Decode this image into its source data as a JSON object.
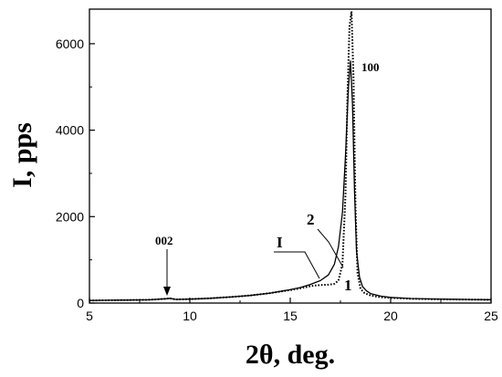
{
  "chart_data": {
    "type": "line",
    "xlabel": "2θ, deg.",
    "ylabel": "I, pps",
    "xlim": [
      5,
      25
    ],
    "ylim": [
      0,
      6800
    ],
    "x_ticks": [
      5,
      10,
      15,
      20,
      25
    ],
    "y_ticks": [
      0,
      2000,
      4000,
      6000
    ],
    "grid": false,
    "series": [
      {
        "name": "1",
        "style": "dotted",
        "points": [
          [
            5,
            60
          ],
          [
            6,
            65
          ],
          [
            7,
            70
          ],
          [
            8,
            75
          ],
          [
            8.8,
            100
          ],
          [
            9,
            110
          ],
          [
            9.3,
            85
          ],
          [
            10,
            90
          ],
          [
            11,
            110
          ],
          [
            12,
            140
          ],
          [
            13,
            175
          ],
          [
            14,
            230
          ],
          [
            15,
            300
          ],
          [
            15.5,
            340
          ],
          [
            16,
            390
          ],
          [
            16.3,
            410
          ],
          [
            16.6,
            420
          ],
          [
            16.9,
            425
          ],
          [
            17.2,
            445
          ],
          [
            17.4,
            520
          ],
          [
            17.6,
            900
          ],
          [
            17.75,
            2500
          ],
          [
            17.85,
            4800
          ],
          [
            17.95,
            6400
          ],
          [
            18.05,
            6750
          ],
          [
            18.15,
            5200
          ],
          [
            18.25,
            2200
          ],
          [
            18.35,
            700
          ],
          [
            18.5,
            330
          ],
          [
            18.7,
            230
          ],
          [
            19,
            175
          ],
          [
            19.5,
            135
          ],
          [
            20,
            120
          ],
          [
            21,
            100
          ],
          [
            22,
            90
          ],
          [
            23,
            85
          ],
          [
            24,
            80
          ],
          [
            25,
            75
          ]
        ]
      },
      {
        "name": "2",
        "style": "solid",
        "points": [
          [
            5,
            60
          ],
          [
            6,
            65
          ],
          [
            7,
            70
          ],
          [
            8,
            75
          ],
          [
            8.8,
            100
          ],
          [
            9,
            110
          ],
          [
            9.3,
            85
          ],
          [
            10,
            90
          ],
          [
            11,
            110
          ],
          [
            12,
            140
          ],
          [
            13,
            175
          ],
          [
            14,
            230
          ],
          [
            15,
            310
          ],
          [
            15.5,
            360
          ],
          [
            16,
            430
          ],
          [
            16.5,
            520
          ],
          [
            16.9,
            650
          ],
          [
            17.2,
            900
          ],
          [
            17.4,
            1300
          ],
          [
            17.6,
            2100
          ],
          [
            17.75,
            3400
          ],
          [
            17.9,
            5000
          ],
          [
            18.0,
            5600
          ],
          [
            18.1,
            4600
          ],
          [
            18.2,
            2600
          ],
          [
            18.3,
            1200
          ],
          [
            18.45,
            600
          ],
          [
            18.6,
            380
          ],
          [
            18.8,
            280
          ],
          [
            19,
            220
          ],
          [
            19.5,
            160
          ],
          [
            20,
            130
          ],
          [
            21,
            105
          ],
          [
            22,
            95
          ],
          [
            23,
            88
          ],
          [
            24,
            82
          ],
          [
            25,
            78
          ]
        ]
      }
    ],
    "annotations": {
      "peak_100": "100",
      "peak_002": "002",
      "label_I": "I",
      "label_1": "1",
      "label_2": "2"
    }
  }
}
